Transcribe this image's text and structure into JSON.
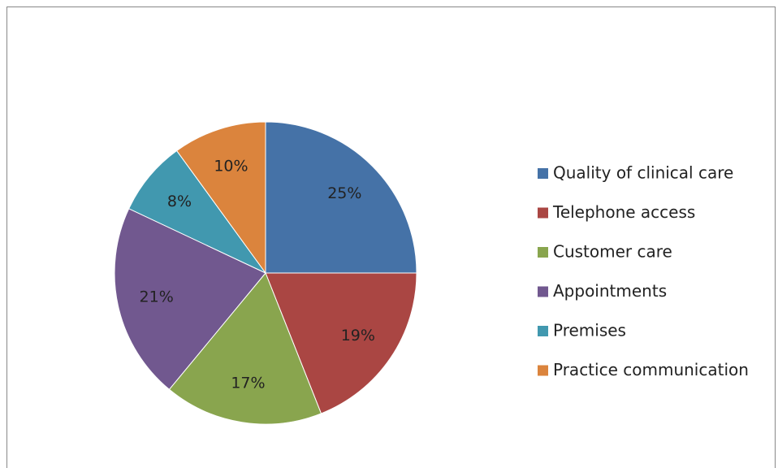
{
  "chart_data": {
    "type": "pie",
    "categories": [
      "Quality of clinical care",
      "Telephone access",
      "Customer care",
      "Appointments",
      "Premises",
      "Practice communication"
    ],
    "values": [
      25,
      19,
      17,
      21,
      8,
      10
    ],
    "value_labels": [
      "25%",
      "19%",
      "17%",
      "21%",
      "8%",
      "10%"
    ],
    "colors": [
      "#4572a7",
      "#aa4643",
      "#89a54e",
      "#71588f",
      "#4198af",
      "#db843d"
    ],
    "legend": "right"
  }
}
